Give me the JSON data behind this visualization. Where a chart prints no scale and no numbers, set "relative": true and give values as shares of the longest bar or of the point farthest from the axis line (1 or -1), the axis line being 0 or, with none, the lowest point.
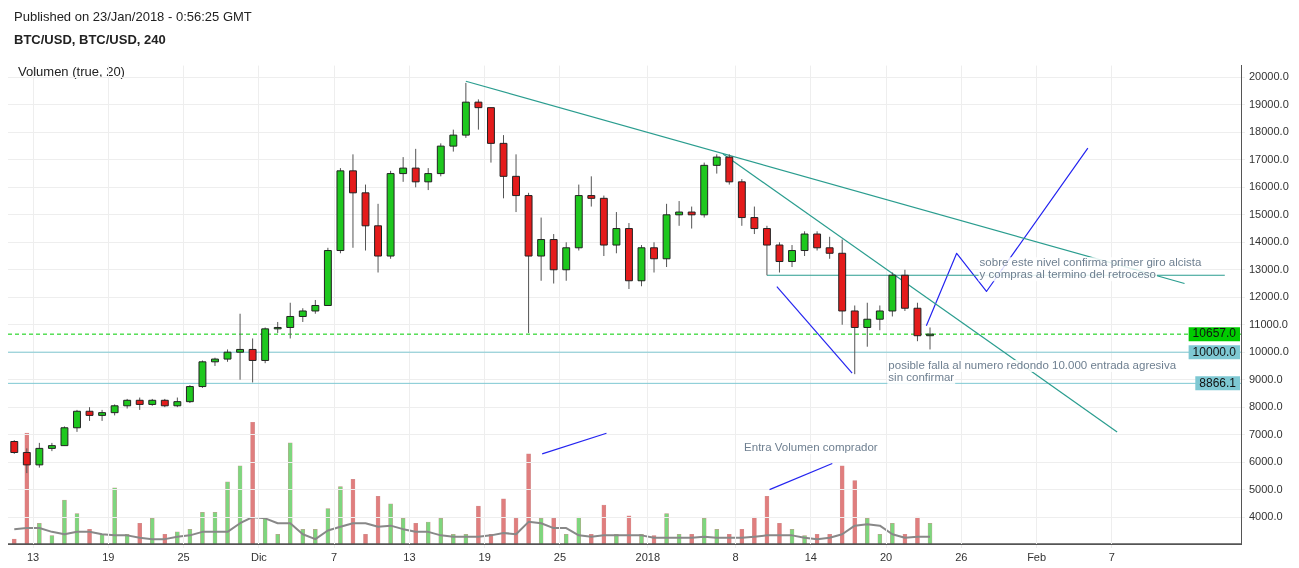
{
  "chart_data": [
    {
      "type": "candlestick",
      "title": "BTC/USD, BTC/USD, 240",
      "subtitle": "Published on 23/Jan/2018 - 0:56:25 GMT",
      "x": [
        "2017-11-11T12:00",
        "2017-11-12T12:00",
        "2017-11-13T12:00",
        "2017-11-14T12:00",
        "2017-11-15T12:00",
        "2017-11-16T12:00",
        "2017-11-17T12:00",
        "2017-11-18T12:00",
        "2017-11-19T12:00",
        "2017-11-20T12:00",
        "2017-11-21T12:00",
        "2017-11-22T12:00",
        "2017-11-23T12:00",
        "2017-11-24T12:00",
        "2017-11-25T12:00",
        "2017-11-26T12:00",
        "2017-11-27T12:00",
        "2017-11-28T12:00",
        "2017-11-29T12:00",
        "2017-11-30T12:00",
        "2017-12-01T12:00",
        "2017-12-02T12:00",
        "2017-12-03T12:00",
        "2017-12-04T12:00",
        "2017-12-05T12:00",
        "2017-12-06T12:00",
        "2017-12-07T12:00",
        "2017-12-08T12:00",
        "2017-12-09T12:00",
        "2017-12-10T12:00",
        "2017-12-11T12:00",
        "2017-12-12T12:00",
        "2017-12-13T12:00",
        "2017-12-14T12:00",
        "2017-12-15T12:00",
        "2017-12-16T12:00",
        "2017-12-17T12:00",
        "2017-12-18T12:00",
        "2017-12-19T12:00",
        "2017-12-20T12:00",
        "2017-12-21T12:00",
        "2017-12-22T12:00",
        "2017-12-23T12:00",
        "2017-12-24T12:00",
        "2017-12-25T12:00",
        "2017-12-26T12:00",
        "2017-12-27T12:00",
        "2017-12-28T12:00",
        "2017-12-29T12:00",
        "2017-12-30T12:00",
        "2017-12-31T12:00",
        "2018-01-01T12:00",
        "2018-01-02T12:00",
        "2018-01-03T12:00",
        "2018-01-04T12:00",
        "2018-01-05T12:00",
        "2018-01-06T12:00",
        "2018-01-07T12:00",
        "2018-01-08T12:00",
        "2018-01-09T12:00",
        "2018-01-10T12:00",
        "2018-01-11T12:00",
        "2018-01-12T12:00",
        "2018-01-13T12:00",
        "2018-01-14T12:00",
        "2018-01-15T12:00",
        "2018-01-16T12:00",
        "2018-01-17T12:00",
        "2018-01-18T12:00",
        "2018-01-19T12:00",
        "2018-01-20T12:00",
        "2018-01-21T12:00",
        "2018-01-22T12:00",
        "2018-01-23T12:00"
      ],
      "ohlc": [
        [
          6750,
          6800,
          6300,
          6350
        ],
        [
          6350,
          6500,
          5600,
          5900
        ],
        [
          5900,
          6700,
          5800,
          6500
        ],
        [
          6500,
          6700,
          6400,
          6600
        ],
        [
          6600,
          7300,
          6600,
          7250
        ],
        [
          7250,
          7900,
          7100,
          7850
        ],
        [
          7850,
          8000,
          7500,
          7700
        ],
        [
          7700,
          7900,
          7500,
          7800
        ],
        [
          7800,
          8100,
          7700,
          8050
        ],
        [
          8050,
          8300,
          7950,
          8250
        ],
        [
          8250,
          8350,
          7900,
          8100
        ],
        [
          8100,
          8300,
          8050,
          8250
        ],
        [
          8250,
          8300,
          8000,
          8050
        ],
        [
          8050,
          8350,
          8000,
          8200
        ],
        [
          8200,
          8800,
          8150,
          8750
        ],
        [
          8750,
          9700,
          8700,
          9650
        ],
        [
          9650,
          9800,
          9500,
          9750
        ],
        [
          9750,
          10100,
          9650,
          10000
        ],
        [
          10000,
          11400,
          9000,
          10100
        ],
        [
          10100,
          10500,
          8900,
          9700
        ],
        [
          9700,
          10900,
          9600,
          10850
        ],
        [
          10850,
          11100,
          10700,
          10900
        ],
        [
          10900,
          11800,
          10500,
          11300
        ],
        [
          11300,
          11600,
          11100,
          11500
        ],
        [
          11500,
          11900,
          11400,
          11700
        ],
        [
          11700,
          13800,
          11700,
          13700
        ],
        [
          13700,
          16700,
          13600,
          16600
        ],
        [
          16600,
          17200,
          13800,
          15800
        ],
        [
          15800,
          16100,
          13700,
          14600
        ],
        [
          14600,
          15400,
          12900,
          13500
        ],
        [
          13500,
          16600,
          13400,
          16500
        ],
        [
          16500,
          17100,
          16200,
          16700
        ],
        [
          16700,
          17400,
          16000,
          16200
        ],
        [
          16200,
          16700,
          15900,
          16500
        ],
        [
          16500,
          17600,
          16400,
          17500
        ],
        [
          17500,
          18100,
          17300,
          17900
        ],
        [
          17900,
          19800,
          17800,
          19100
        ],
        [
          19100,
          19200,
          18100,
          18900
        ],
        [
          18900,
          18900,
          16900,
          17600
        ],
        [
          17600,
          17900,
          15600,
          16400
        ],
        [
          16400,
          17200,
          15100,
          15700
        ],
        [
          15700,
          15800,
          10700,
          13500
        ],
        [
          13500,
          14900,
          12600,
          14100
        ],
        [
          14100,
          14300,
          12500,
          13000
        ],
        [
          13000,
          14000,
          12600,
          13800
        ],
        [
          13800,
          16100,
          13700,
          15700
        ],
        [
          15700,
          16400,
          15300,
          15600
        ],
        [
          15600,
          15700,
          13500,
          13900
        ],
        [
          13900,
          15100,
          13600,
          14500
        ],
        [
          14500,
          14700,
          12300,
          12600
        ],
        [
          12600,
          13900,
          12400,
          13800
        ],
        [
          13800,
          14000,
          12900,
          13400
        ],
        [
          13400,
          15400,
          13100,
          15000
        ],
        [
          15000,
          15500,
          14600,
          15100
        ],
        [
          15100,
          15300,
          14500,
          15000
        ],
        [
          15000,
          16900,
          14900,
          16800
        ],
        [
          16800,
          17200,
          16500,
          17100
        ],
        [
          17100,
          17200,
          16100,
          16200
        ],
        [
          16200,
          16300,
          14600,
          14900
        ],
        [
          14900,
          15300,
          14300,
          14500
        ],
        [
          14500,
          14600,
          12800,
          13900
        ],
        [
          13900,
          14000,
          12900,
          13300
        ],
        [
          13300,
          13900,
          13100,
          13700
        ],
        [
          13700,
          14400,
          13500,
          14300
        ],
        [
          14300,
          14400,
          13700,
          13800
        ],
        [
          13800,
          14200,
          13400,
          13600
        ],
        [
          13600,
          14100,
          11000,
          11500
        ],
        [
          11500,
          11700,
          9200,
          10900
        ],
        [
          10900,
          11800,
          10200,
          11200
        ],
        [
          11200,
          11700,
          10800,
          11500
        ],
        [
          11500,
          12900,
          11300,
          12800
        ],
        [
          12800,
          13000,
          11500,
          11600
        ],
        [
          11600,
          11800,
          10400,
          10600
        ],
        [
          10600,
          10900,
          10100,
          10657
        ]
      ],
      "colors": [
        "#e41b1b",
        "#e41b1b",
        "#1ec81e",
        "#1ec81e",
        "#1ec81e",
        "#1ec81e",
        "#e41b1b",
        "#1ec81e",
        "#1ec81e",
        "#1ec81e",
        "#e41b1b",
        "#1ec81e",
        "#e41b1b",
        "#1ec81e",
        "#1ec81e",
        "#1ec81e",
        "#1ec81e",
        "#1ec81e",
        "#1ec81e",
        "#e41b1b",
        "#1ec81e",
        "#1ec81e",
        "#1ec81e",
        "#1ec81e",
        "#1ec81e",
        "#1ec81e",
        "#1ec81e",
        "#e41b1b",
        "#e41b1b",
        "#e41b1b",
        "#1ec81e",
        "#1ec81e",
        "#e41b1b",
        "#1ec81e",
        "#1ec81e",
        "#1ec81e",
        "#1ec81e",
        "#e41b1b",
        "#e41b1b",
        "#e41b1b",
        "#e41b1b",
        "#e41b1b",
        "#1ec81e",
        "#e41b1b",
        "#1ec81e",
        "#1ec81e",
        "#e41b1b",
        "#e41b1b",
        "#1ec81e",
        "#e41b1b",
        "#1ec81e",
        "#e41b1b",
        "#1ec81e",
        "#1ec81e",
        "#e41b1b",
        "#1ec81e",
        "#1ec81e",
        "#e41b1b",
        "#e41b1b",
        "#e41b1b",
        "#e41b1b",
        "#e41b1b",
        "#1ec81e",
        "#1ec81e",
        "#e41b1b",
        "#e41b1b",
        "#e41b1b",
        "#e41b1b",
        "#1ec81e",
        "#1ec81e",
        "#1ec81e",
        "#e41b1b",
        "#e41b1b",
        "#1ec81e"
      ],
      "series": [
        {
          "type": "line",
          "color": "#2a9d8f",
          "x": [
            "2017-12-17T12:00",
            "2018-02-12T19:00"
          ],
          "values": [
            19860,
            12500
          ]
        },
        {
          "type": "line",
          "color": "#2a9d8f",
          "x": [
            "2018-01-07T00:00",
            "2018-02-07T10:00"
          ],
          "values": [
            17210,
            7100
          ]
        },
        {
          "type": "line",
          "color": "#2a9d8f",
          "x": [
            "2018-01-10T12:00",
            "2018-02-16T00:00"
          ],
          "values": [
            12800,
            12800
          ]
        },
        {
          "type": "line",
          "color": "#2424f0",
          "x": [
            "2018-01-11T07:00",
            "2018-01-17T07:00"
          ],
          "values": [
            12390,
            9240
          ]
        },
        {
          "type": "line",
          "color": "#2424f0",
          "x": [
            "2018-01-23T05:00",
            "2018-01-25T15:00",
            "2018-01-28T00:00",
            "2018-02-05T02:00"
          ],
          "values": [
            10960,
            13600,
            12210,
            17430
          ]
        },
        {
          "type": "line",
          "color": "#2424f0",
          "x": [
            "2017-12-23T14:00",
            "2017-12-28T17:00"
          ],
          "values": [
            6300,
            7050
          ]
        },
        {
          "type": "line",
          "color": "#2424f0",
          "x": [
            "2018-01-10T17:00",
            "2018-01-15T17:00"
          ],
          "values": [
            5000,
            5950
          ]
        }
      ],
      "ref_lines": [
        {
          "axis": "y",
          "value": 10657,
          "label": "10657.0",
          "color": "#00cc00",
          "line_style": "dashed"
        },
        {
          "axis": "y",
          "value": 10000,
          "label": "10000.0",
          "color": "#7ec8d3",
          "line_style": "solid"
        },
        {
          "axis": "y",
          "value": 8866.1,
          "label": "8866.1",
          "color": "#7ec8d3",
          "line_style": "solid"
        }
      ],
      "annotations": [
        "sobre este nivel confirma primer giro alcista\ny compras al termino del retroceso",
        "posible falla al numero redondo 10.000 entrada agresiva\nsin confirmar",
        "Entra Volumen comprador"
      ],
      "xlim": [
        "2017-11-11",
        "2018-02-17T07:00"
      ],
      "xticks": [
        {
          "value": "2017-11-13",
          "label": "13"
        },
        {
          "value": "2017-11-19",
          "label": "19"
        },
        {
          "value": "2017-11-25",
          "label": "25"
        },
        {
          "value": "2017-12-01",
          "label": "Dic"
        },
        {
          "value": "2017-12-07",
          "label": "7"
        },
        {
          "value": "2017-12-13",
          "label": "13"
        },
        {
          "value": "2017-12-19",
          "label": "19"
        },
        {
          "value": "2017-12-25",
          "label": "25"
        },
        {
          "value": "2018-01-01",
          "label": "2018"
        },
        {
          "value": "2018-01-08",
          "label": "8"
        },
        {
          "value": "2018-01-14",
          "label": "14"
        },
        {
          "value": "2018-01-20",
          "label": "20"
        },
        {
          "value": "2018-01-26",
          "label": "26"
        },
        {
          "value": "2018-02-01",
          "label": "Feb"
        },
        {
          "value": "2018-02-07",
          "label": "7"
        }
      ],
      "ylim": [
        3020,
        20430
      ],
      "yticks": [
        {
          "value": 4000,
          "label": "4000.0"
        },
        {
          "value": 5000,
          "label": "5000.0"
        },
        {
          "value": 6000,
          "label": "6000.0"
        },
        {
          "value": 7000,
          "label": "7000.0"
        },
        {
          "value": 8000,
          "label": "8000.0"
        },
        {
          "value": 9000,
          "label": "9000.0"
        },
        {
          "value": 10000,
          "label": "10000.0"
        },
        {
          "value": 11000,
          "label": "11000.0"
        },
        {
          "value": 12000,
          "label": "12000.0"
        },
        {
          "value": 13000,
          "label": "13000.0"
        },
        {
          "value": 14000,
          "label": "14000.0"
        },
        {
          "value": 15000,
          "label": "15000.0"
        },
        {
          "value": 16000,
          "label": "16000.0"
        },
        {
          "value": 17000,
          "label": "17000.0"
        },
        {
          "value": 18000,
          "label": "18000.0"
        },
        {
          "value": 19000,
          "label": "19000.0"
        },
        {
          "value": 20000,
          "label": "20000.0"
        }
      ],
      "grid": true,
      "marker": "none",
      "line_style": "solid"
    },
    {
      "type": "bar",
      "relative": true,
      "annotations": [
        "Volumen (true, 20)"
      ],
      "categories": [
        null,
        null,
        null,
        null,
        null,
        null,
        null,
        null,
        null,
        null,
        null,
        null,
        null,
        null,
        null,
        null,
        null,
        null,
        null,
        null,
        null,
        null,
        null,
        null,
        null,
        null,
        null,
        null,
        null,
        null,
        null,
        null,
        null,
        null,
        null,
        null,
        null,
        null,
        null,
        null,
        null,
        null,
        null,
        null,
        null,
        null,
        null,
        null,
        null,
        null,
        null,
        null,
        null,
        null,
        null,
        null,
        null,
        null,
        null,
        null,
        null,
        null,
        null,
        null,
        null,
        null,
        null,
        null,
        null,
        null,
        null,
        null,
        null,
        null
      ],
      "series": [
        {
          "type": "bar",
          "colors": [
            "#e07e7e",
            "#e07e7e",
            "#7ed67e",
            "#7ed67e",
            "#7ed67e",
            "#7ed67e",
            "#e07e7e",
            "#7ed67e",
            "#7ed67e",
            "#7ed67e",
            "#e07e7e",
            "#7ed67e",
            "#e07e7e",
            "#7ed67e",
            "#7ed67e",
            "#7ed67e",
            "#7ed67e",
            "#7ed67e",
            "#7ed67e",
            "#e07e7e",
            "#7ed67e",
            "#7ed67e",
            "#7ed67e",
            "#7ed67e",
            "#7ed67e",
            "#7ed67e",
            "#7ed67e",
            "#e07e7e",
            "#e07e7e",
            "#e07e7e",
            "#7ed67e",
            "#7ed67e",
            "#e07e7e",
            "#7ed67e",
            "#7ed67e",
            "#7ed67e",
            "#7ed67e",
            "#e07e7e",
            "#e07e7e",
            "#e07e7e",
            "#e07e7e",
            "#e07e7e",
            "#7ed67e",
            "#e07e7e",
            "#7ed67e",
            "#7ed67e",
            "#e07e7e",
            "#e07e7e",
            "#7ed67e",
            "#e07e7e",
            "#7ed67e",
            "#e07e7e",
            "#7ed67e",
            "#7ed67e",
            "#e07e7e",
            "#7ed67e",
            "#7ed67e",
            "#e07e7e",
            "#e07e7e",
            "#e07e7e",
            "#e07e7e",
            "#e07e7e",
            "#7ed67e",
            "#7ed67e",
            "#e07e7e",
            "#e07e7e",
            "#e07e7e",
            "#e07e7e",
            "#7ed67e",
            "#7ed67e",
            "#7ed67e",
            "#e07e7e",
            "#e07e7e",
            "#7ed67e"
          ],
          "values": [
            0.04,
            0.91,
            0.17,
            0.07,
            0.36,
            0.25,
            0.12,
            0.08,
            0.46,
            0.08,
            0.17,
            0.21,
            0.08,
            0.1,
            0.12,
            0.26,
            0.26,
            0.51,
            0.64,
            1,
            0.21,
            0.08,
            0.83,
            0.12,
            0.12,
            0.29,
            0.47,
            0.53,
            0.08,
            0.39,
            0.33,
            0.21,
            0.17,
            0.18,
            0.21,
            0.08,
            0.08,
            0.31,
            0.08,
            0.37,
            0.21,
            0.74,
            0.21,
            0.21,
            0.08,
            0.22,
            0.08,
            0.32,
            0.08,
            0.23,
            0.08,
            0.07,
            0.25,
            0.08,
            0.08,
            0.21,
            0.12,
            0.08,
            0.12,
            0.22,
            0.39,
            0.17,
            0.12,
            0.07,
            0.08,
            0.08,
            0.64,
            0.52,
            0.21,
            0.08,
            0.17,
            0.08,
            0.22,
            0.17
          ]
        }
      ]
    },
    {
      "type": "line",
      "relative": true,
      "categories": [
        null,
        null,
        null,
        null,
        null,
        null,
        null,
        null,
        null,
        null,
        null,
        null,
        null,
        null,
        null,
        null,
        null,
        null,
        null,
        null,
        null,
        null,
        null,
        null,
        null,
        null,
        null,
        null,
        null,
        null,
        null,
        null,
        null,
        null,
        null,
        null,
        null,
        null,
        null,
        null,
        null,
        null,
        null,
        null,
        null,
        null,
        null,
        null,
        null,
        null,
        null,
        null,
        null,
        null,
        null,
        null,
        null,
        null,
        null,
        null,
        null,
        null,
        null,
        null,
        null,
        null,
        null,
        null,
        null,
        null,
        null,
        null,
        null,
        null
      ],
      "series": [
        {
          "type": "line",
          "color": "#888888",
          "values": [
            0.55,
            0.59,
            0.59,
            0.45,
            0.36,
            0.45,
            0.45,
            0.36,
            0.32,
            0.32,
            0.23,
            0.18,
            0.18,
            0.27,
            0.32,
            0.45,
            0.45,
            0.45,
            0.77,
            1,
            0.95,
            0.77,
            0.77,
            0.36,
            0.18,
            0.5,
            0.64,
            0.77,
            0.77,
            0.64,
            0.68,
            0.55,
            0.45,
            0.45,
            0.32,
            0.27,
            0.27,
            0.27,
            0.32,
            0.41,
            0.36,
            0.82,
            0.77,
            0.59,
            0.59,
            0.32,
            0.27,
            0.32,
            0.32,
            0.32,
            0.32,
            0.23,
            0.23,
            0.23,
            0.23,
            0.27,
            0.23,
            0.23,
            0.23,
            0.27,
            0.32,
            0.32,
            0.32,
            0.23,
            0.18,
            0.23,
            0.36,
            0.68,
            0.73,
            0.68,
            0.36,
            0.23,
            0.27,
            0.27
          ]
        }
      ]
    }
  ]
}
